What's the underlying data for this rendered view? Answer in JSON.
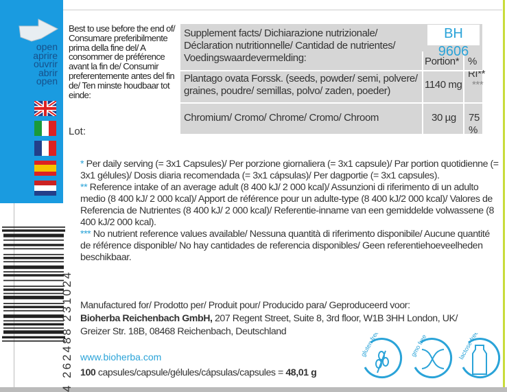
{
  "open_labels": [
    "open",
    "aprire",
    "ouvrir",
    "abrir",
    "open"
  ],
  "flags": [
    "uk-flag",
    "italy-flag",
    "france-flag",
    "spain-flag",
    "netherlands-flag"
  ],
  "best_before": "Best to use before the end of/ Consumare preferibilmente prima della fine del/ A consommer de préférence avant la fin de/ Consumir preferentemente antes del fin de/ Ten minste houdbaar tot einde:",
  "lot_label": "Lot:",
  "product_code": "BH 9606",
  "table": {
    "header": "Supplement facts/ Dichiarazione nutrizionale/ Déclaration nutritionnelle/ Cantidad de nutrientes/ Voedingswaardevermelding:",
    "col_portion": "Portion*",
    "col_ri": "% RI**",
    "rows": [
      {
        "name": "Plantago ovata Forssk. (seeds, powder/ semi, polvere/ graines, poudre/ semillas, polvo/ zaden, poeder)",
        "portion": "1140 mg",
        "ri": "***"
      },
      {
        "name": "Chromium/ Cromo/ Chrome/ Cromo/ Chroom",
        "portion": "30 µg",
        "ri": "75 %"
      }
    ]
  },
  "notes": [
    {
      "mark": "*",
      "text": " Per daily serving (= 3x1 Capsules)/ Per porzione giornaliera (= 3x1 capsule)/ Par portion quotidienne (= 3x1 gélules)/ Dosis diaria recomendada (= 3x1 cápsulas)/ Per dagportie (= 3x1 capsules)."
    },
    {
      "mark": "**",
      "text": " Reference intake of an average adult (8 400 kJ/ 2 000 kcal)/ Assunzioni di riferimento di un adulto medio (8 400 kJ/ 2 000 kcal)/ Apport de référence pour un adulte-type (8 400 kJ/2 000 kcal)/ Valores de Referencia de Nutrientes (8 400 kJ/ 2 000 kcal)/ Referentie-inname van een gemiddelde volwassene (8 400 kJ/2 000 kcal)."
    },
    {
      "mark": "***",
      "text": " No nutrient reference values available/ Nessuna quantità di riferimento disponibile/ Aucune quantité de référence disponible/ No hay cantidades de referencia disponibles/ Geen referentiehoeveelheden beschikbaar."
    }
  ],
  "manufacturer": {
    "label": "Manufactured for/ Prodotto per/ Produit pour/ Producido para/ Geproduceerd voor:",
    "company": "Bioherba Reichenbach GmbH,",
    "address1": " 207 Regent Street, Suite 8, 3rd floor, W1B 3HH London, UK/",
    "address2": "Greizer Str. 18B, 08468 Reichenbach, Deutschland"
  },
  "website": "www.bioherba.com",
  "quantity": {
    "count": "100",
    "text": " capsules/capsule/gélules/cápsulas/capsules = ",
    "weight": "48,01 g"
  },
  "barcode_number": "4 262488 231024",
  "badges": [
    {
      "label": "gluten free",
      "icon": "wheat-icon"
    },
    {
      "label": "gmo free",
      "icon": "dna-icon"
    },
    {
      "label": "lactose free",
      "icon": "bottle-icon"
    }
  ],
  "colors": {
    "brand_blue": "#1a9be0",
    "accent": "#2aa3d8",
    "table_gray": "#d6d6d6",
    "edge_green": "#c9dc3a"
  }
}
